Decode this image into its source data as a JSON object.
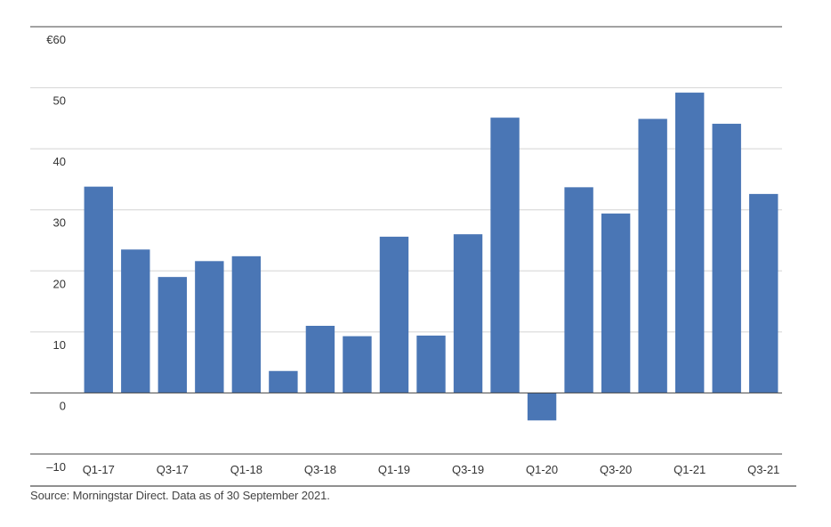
{
  "chart_data": {
    "type": "bar",
    "title": "",
    "xlabel": "",
    "ylabel": "",
    "ylim": [
      -10,
      60
    ],
    "yticks": [
      {
        "value": 60,
        "label": "€60"
      },
      {
        "value": 50,
        "label": "50"
      },
      {
        "value": 40,
        "label": "40"
      },
      {
        "value": 30,
        "label": "30"
      },
      {
        "value": 20,
        "label": "20"
      },
      {
        "value": 10,
        "label": "10"
      },
      {
        "value": 0,
        "label": "0"
      },
      {
        "value": -10,
        "label": "–10"
      }
    ],
    "categories": [
      "Q1-17",
      "Q2-17",
      "Q3-17",
      "Q4-17",
      "Q1-18",
      "Q2-18",
      "Q3-18",
      "Q4-18",
      "Q1-19",
      "Q2-19",
      "Q3-19",
      "Q4-19",
      "Q1-20",
      "Q2-20",
      "Q3-20",
      "Q4-20",
      "Q1-21",
      "Q2-21",
      "Q3-21"
    ],
    "visible_x_labels": [
      "Q1-17",
      "Q3-17",
      "Q1-18",
      "Q3-18",
      "Q1-19",
      "Q3-19",
      "Q1-20",
      "Q3-20",
      "Q1-21",
      "Q3-21"
    ],
    "values": [
      33.8,
      23.5,
      19.0,
      21.6,
      22.4,
      3.6,
      11.0,
      9.3,
      25.6,
      9.4,
      26.0,
      45.1,
      -4.5,
      33.7,
      29.4,
      44.9,
      49.2,
      44.1,
      32.6
    ],
    "bar_color": "#4a76b5",
    "grid": true,
    "legend": "none"
  },
  "source": "Source: Morningstar Direct. Data as of 30 September 2021."
}
